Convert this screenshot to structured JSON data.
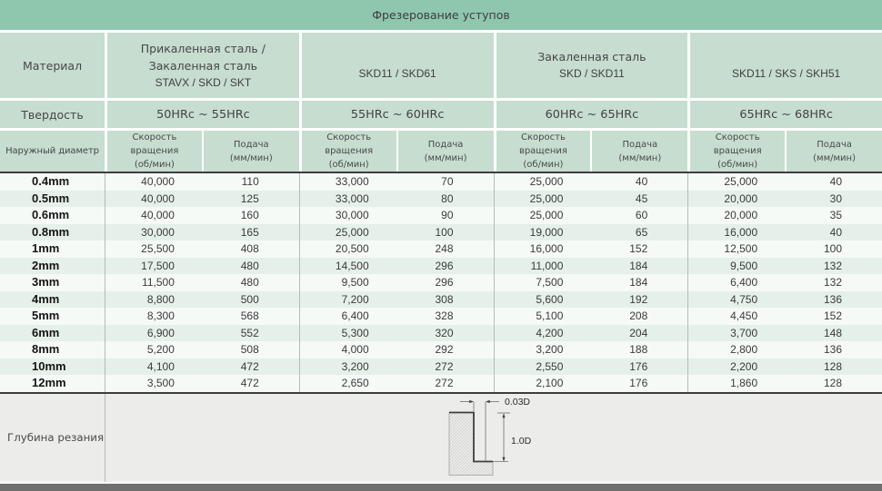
{
  "title": "Фрезерование уступов",
  "colors": {
    "title_band": "#8fc7ae",
    "header_cell": "#c6ddd0",
    "row_even": "#e5f0ea",
    "row_odd": "#f6faf7",
    "depth_bg": "#ececeb",
    "bottom_bar": "#6f6f6f"
  },
  "left": {
    "material": "Материал",
    "hardness": "Твердость",
    "diameter": "Наружный диаметр",
    "depth": "Глубина резания"
  },
  "col_headers": {
    "speed": [
      "Скорость",
      "вращения",
      "(об/мин)"
    ],
    "feed": [
      "Подача",
      "(мм/мин)"
    ]
  },
  "groups": [
    {
      "material": [
        "Прикаленная сталь /",
        "Закаленная сталь"
      ],
      "code": "STAVX / SKD / SKT",
      "hardness": "50HRc ~ 55HRc"
    },
    {
      "material": [],
      "code": "SKD11 / SKD61",
      "hardness": "55HRc ~ 60HRc"
    },
    {
      "material": [
        "Закаленная сталь"
      ],
      "code": "SKD / SKD11",
      "hardness": "60HRc ~ 65HRc"
    },
    {
      "material": [],
      "code": "SKD11 / SKS / SKH51",
      "hardness": "65HRc ~ 68HRc"
    }
  ],
  "rows": [
    {
      "d": "0.4mm",
      "v": [
        "40,000",
        "110",
        "33,000",
        "70",
        "25,000",
        "40",
        "25,000",
        "40"
      ]
    },
    {
      "d": "0.5mm",
      "v": [
        "40,000",
        "125",
        "33,000",
        "80",
        "25,000",
        "45",
        "20,000",
        "30"
      ]
    },
    {
      "d": "0.6mm",
      "v": [
        "40,000",
        "160",
        "30,000",
        "90",
        "25,000",
        "60",
        "20,000",
        "35"
      ]
    },
    {
      "d": "0.8mm",
      "v": [
        "30,000",
        "165",
        "25,000",
        "100",
        "19,000",
        "65",
        "16,000",
        "40"
      ]
    },
    {
      "d": "1mm",
      "v": [
        "25,500",
        "408",
        "20,500",
        "248",
        "16,000",
        "152",
        "12,500",
        "100"
      ]
    },
    {
      "d": "2mm",
      "v": [
        "17,500",
        "480",
        "14,500",
        "296",
        "11,000",
        "184",
        "9,500",
        "132"
      ]
    },
    {
      "d": "3mm",
      "v": [
        "11,500",
        "480",
        "9,500",
        "296",
        "7,500",
        "184",
        "6,400",
        "132"
      ]
    },
    {
      "d": "4mm",
      "v": [
        "8,800",
        "500",
        "7,200",
        "308",
        "5,600",
        "192",
        "4,750",
        "136"
      ]
    },
    {
      "d": "5mm",
      "v": [
        "8,300",
        "568",
        "6,400",
        "328",
        "5,100",
        "208",
        "4,450",
        "152"
      ]
    },
    {
      "d": "6mm",
      "v": [
        "6,900",
        "552",
        "5,300",
        "320",
        "4,200",
        "204",
        "3,700",
        "148"
      ]
    },
    {
      "d": "8mm",
      "v": [
        "5,200",
        "508",
        "4,000",
        "292",
        "3,200",
        "188",
        "2,800",
        "136"
      ]
    },
    {
      "d": "10mm",
      "v": [
        "4,100",
        "472",
        "3,200",
        "272",
        "2,550",
        "176",
        "2,200",
        "128"
      ]
    },
    {
      "d": "12mm",
      "v": [
        "3,500",
        "472",
        "2,650",
        "272",
        "2,100",
        "176",
        "1,860",
        "128"
      ]
    }
  ],
  "depth_diagram": {
    "radial": "0.03D",
    "axial": "1.0D"
  }
}
